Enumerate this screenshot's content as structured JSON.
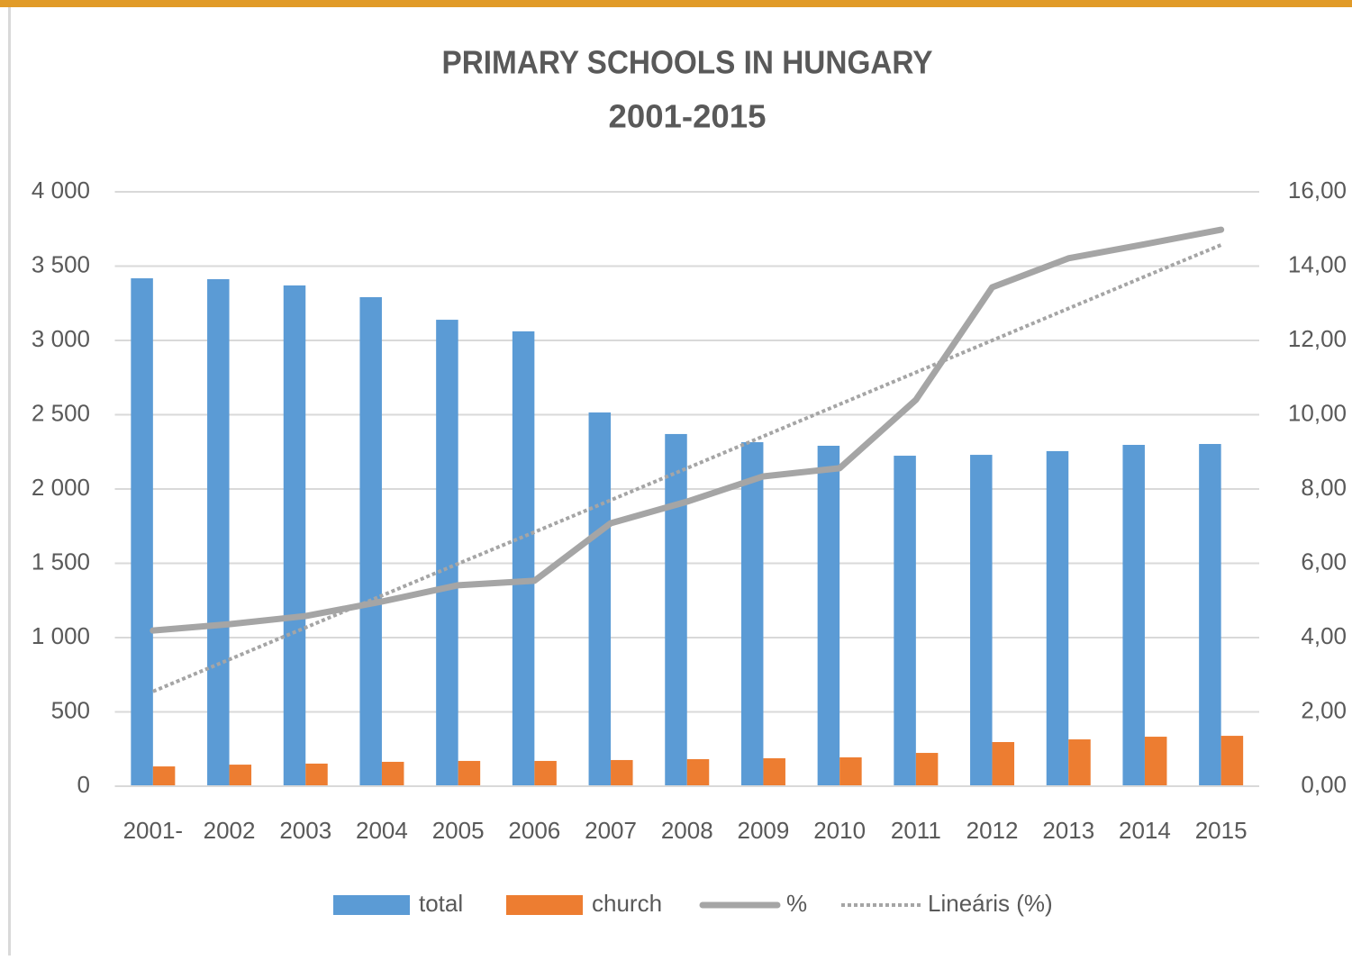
{
  "chart_data": {
    "type": "bar_line",
    "title": "PRIMARY SCHOOLS IN HUNGARY",
    "subtitle": "2001-2015",
    "categories": [
      "2001-",
      "2002",
      "2003",
      "2004",
      "2005",
      "2006",
      "2007",
      "2008",
      "2009",
      "2010",
      "2011",
      "2012",
      "2013",
      "2014",
      "2015"
    ],
    "series": [
      {
        "name": "total",
        "type": "bar",
        "color": "#5b9bd5",
        "values": [
          3418,
          3412,
          3370,
          3291,
          3139,
          3061,
          2515,
          2370,
          2315,
          2291,
          2224,
          2230,
          2255,
          2297,
          2303
        ]
      },
      {
        "name": "church",
        "type": "bar",
        "color": "#ed7d31",
        "values": [
          133,
          145,
          152,
          164,
          170,
          170,
          176,
          182,
          188,
          194,
          224,
          297,
          315,
          333,
          339
        ]
      },
      {
        "name": "%",
        "type": "line",
        "axis": "y2",
        "color": "#a5a5a5",
        "values": [
          4.19,
          4.36,
          4.58,
          4.97,
          5.41,
          5.53,
          7.08,
          7.66,
          8.34,
          8.56,
          10.4,
          13.43,
          14.21,
          14.59,
          14.98
        ]
      },
      {
        "name": "Lineáris (%)",
        "type": "dotted",
        "axis": "y2",
        "color": "#a5a5a5",
        "values": [
          2.55,
          3.41,
          4.27,
          5.13,
          5.99,
          6.84,
          7.7,
          8.56,
          9.42,
          10.28,
          11.14,
          12.0,
          12.86,
          13.72,
          14.57
        ]
      }
    ],
    "ylim": [
      0,
      4000
    ],
    "yticks": [
      0,
      500,
      {
        "value": 1000,
        "label": "1 000"
      },
      {
        "value": 1500,
        "label": "1 500"
      },
      {
        "value": 2000,
        "label": "2 000"
      },
      {
        "value": 2500,
        "label": "2 500"
      },
      {
        "value": 3000,
        "label": "3 000"
      },
      {
        "value": 3500,
        "label": "3 500"
      },
      {
        "value": 4000,
        "label": "4 000"
      }
    ],
    "y2lim": [
      0,
      16
    ],
    "y2ticks": [
      {
        "value": 0,
        "label": "0,00"
      },
      {
        "value": 2,
        "label": "2,00"
      },
      {
        "value": 4,
        "label": "4,00"
      },
      {
        "value": 6,
        "label": "6,00"
      },
      {
        "value": 8,
        "label": "8,00"
      },
      {
        "value": 10,
        "label": "10,00"
      },
      {
        "value": 12,
        "label": "12,00"
      },
      {
        "value": 14,
        "label": "14,00"
      },
      {
        "value": 16,
        "label": "16,00"
      }
    ],
    "grid": true,
    "legend": "bottom"
  }
}
